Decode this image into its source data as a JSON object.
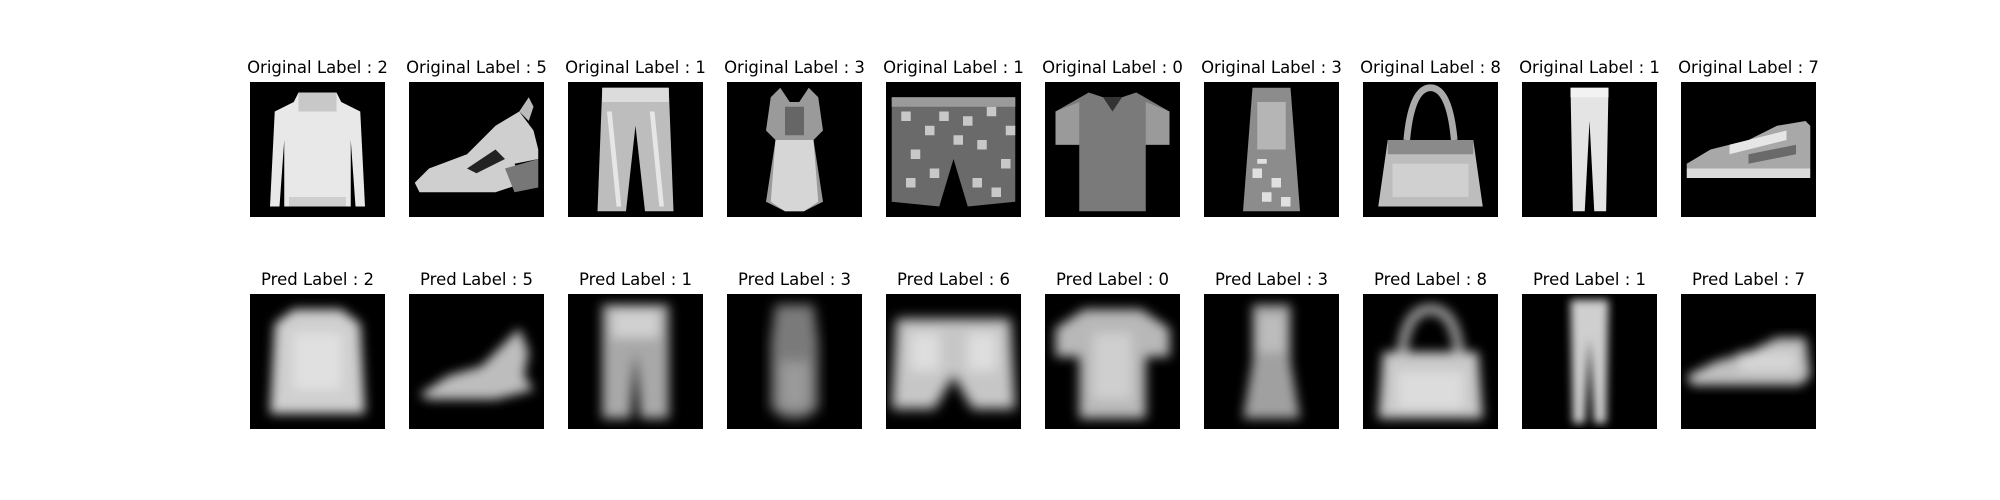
{
  "rows": [
    {
      "name": "original",
      "items": [
        {
          "title": "Original Label : 2",
          "icon": "pullover-icon"
        },
        {
          "title": "Original Label : 5",
          "icon": "sandal-icon"
        },
        {
          "title": "Original Label : 1",
          "icon": "trouser-icon"
        },
        {
          "title": "Original Label : 3",
          "icon": "dress-icon"
        },
        {
          "title": "Original Label : 1",
          "icon": "shorts-icon"
        },
        {
          "title": "Original Label : 0",
          "icon": "tshirt-icon"
        },
        {
          "title": "Original Label : 3",
          "icon": "dress-narrow-icon"
        },
        {
          "title": "Original Label : 8",
          "icon": "bag-icon"
        },
        {
          "title": "Original Label : 1",
          "icon": "leggings-icon"
        },
        {
          "title": "Original Label : 7",
          "icon": "sneaker-icon"
        }
      ]
    },
    {
      "name": "pred",
      "items": [
        {
          "title": "Pred Label : 2",
          "icon": "pullover-blur-icon"
        },
        {
          "title": "Pred Label : 5",
          "icon": "sandal-blur-icon"
        },
        {
          "title": "Pred Label : 1",
          "icon": "trouser-blur-icon"
        },
        {
          "title": "Pred Label : 3",
          "icon": "dress-blur-icon"
        },
        {
          "title": "Pred Label : 6",
          "icon": "shorts-blur-icon"
        },
        {
          "title": "Pred Label : 0",
          "icon": "tshirt-blur-icon"
        },
        {
          "title": "Pred Label : 3",
          "icon": "dress-narrow-blur-icon"
        },
        {
          "title": "Pred Label : 8",
          "icon": "bag-blur-icon"
        },
        {
          "title": "Pred Label : 1",
          "icon": "leggings-blur-icon"
        },
        {
          "title": "Pred Label : 7",
          "icon": "sneaker-blur-icon"
        }
      ]
    }
  ],
  "colors": {
    "background": "#ffffff",
    "image_background": "#000000",
    "garment_light": "#e6e6e6",
    "garment_mid": "#9a9a9a",
    "garment_dark": "#555555"
  }
}
